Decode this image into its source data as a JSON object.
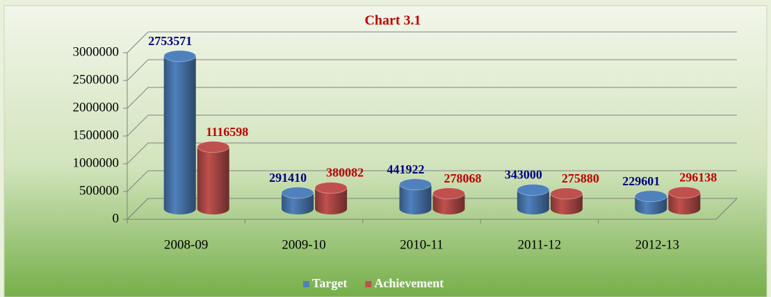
{
  "chart_data": {
    "type": "bar3d",
    "title": "Chart 3.1",
    "categories": [
      "2008-09",
      "2009-10",
      "2010-11",
      "2011-12",
      "2012-13"
    ],
    "series": [
      {
        "name": "Target",
        "color": "#4f81bd",
        "label_color": "#000080",
        "values": [
          2753571,
          291410,
          441922,
          343000,
          229601
        ]
      },
      {
        "name": "Achievement",
        "color": "#c0504d",
        "label_color": "#c00000",
        "values": [
          1116598,
          380082,
          278068,
          275880,
          296138
        ]
      }
    ],
    "ylim": [
      0,
      3000000
    ],
    "yticks": [
      0,
      500000,
      1000000,
      1500000,
      2000000,
      2500000,
      3000000
    ],
    "grid": true,
    "legend": "bottom"
  }
}
